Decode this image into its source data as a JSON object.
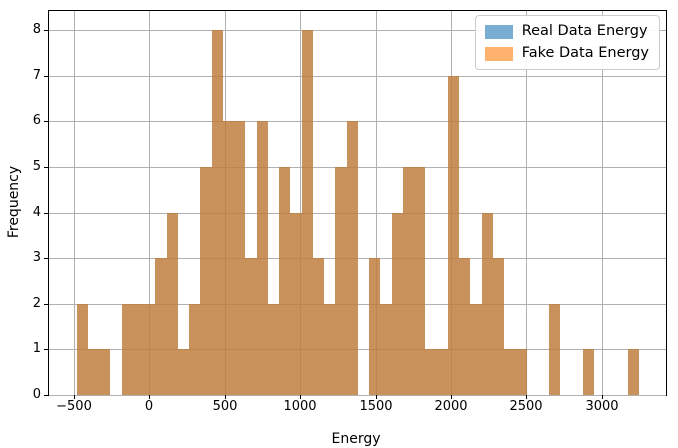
{
  "figure": {
    "xlabel": "Energy",
    "ylabel": "Frequency",
    "legend": {
      "items": [
        {
          "label": "Real Data Energy",
          "swatch_color": "rgba(31,119,180,0.6)"
        },
        {
          "label": "Fake Data Energy",
          "swatch_color": "rgba(255,127,14,0.6)"
        }
      ]
    }
  },
  "chart_data": {
    "type": "bar",
    "subtype": "overlapping-histograms",
    "title": "",
    "xlabel": "Energy",
    "ylabel": "Frequency",
    "xlim": [
      -666,
      3426
    ],
    "ylim": [
      0,
      8.42
    ],
    "xticks": [
      -500,
      0,
      500,
      1000,
      1500,
      2000,
      2500,
      3000
    ],
    "xticklabels": [
      "−500",
      "0",
      "500",
      "1000",
      "1500",
      "2000",
      "2500",
      "3000"
    ],
    "yticks": [
      0,
      1,
      2,
      3,
      4,
      5,
      6,
      7,
      8
    ],
    "yticklabels": [
      "0",
      "1",
      "2",
      "3",
      "4",
      "5",
      "6",
      "7",
      "8"
    ],
    "grid": true,
    "grid_color": "#b0b0b0",
    "legend_position": "upper right",
    "bins": {
      "start": -482,
      "width": 74.6,
      "count": 50
    },
    "series": [
      {
        "name": "Real Data Energy",
        "color": "#1f77b4",
        "alpha": 0.6,
        "counts": [
          2,
          1,
          1,
          0,
          2,
          2,
          2,
          3,
          4,
          1,
          2,
          5,
          8,
          6,
          6,
          3,
          6,
          2,
          5,
          4,
          8,
          3,
          2,
          5,
          6,
          0,
          3,
          2,
          4,
          5,
          5,
          1,
          1,
          7,
          3,
          2,
          4,
          3,
          1,
          1,
          0,
          0,
          2,
          0,
          0,
          1,
          0,
          0,
          0,
          1
        ]
      },
      {
        "name": "Fake Data Energy",
        "color": "#ff7f0e",
        "alpha": 0.6,
        "counts": [
          2,
          1,
          1,
          0,
          2,
          2,
          2,
          3,
          4,
          1,
          2,
          5,
          8,
          6,
          6,
          3,
          6,
          2,
          5,
          4,
          8,
          3,
          2,
          5,
          6,
          0,
          3,
          2,
          4,
          5,
          5,
          1,
          1,
          7,
          3,
          2,
          4,
          3,
          1,
          1,
          0,
          0,
          2,
          0,
          0,
          1,
          0,
          0,
          0,
          1
        ]
      }
    ]
  }
}
